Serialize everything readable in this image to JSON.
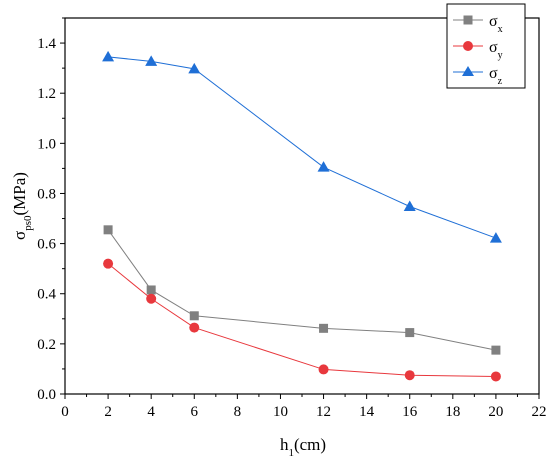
{
  "chart_data": {
    "type": "line",
    "xlabel": {
      "base": "h",
      "sub": "1",
      "rest": "(cm)"
    },
    "ylabel": {
      "base": "σ",
      "sub": "ps0",
      "rest": "(MPa)"
    },
    "xlim": [
      0,
      22
    ],
    "ylim": [
      0,
      1.5
    ],
    "x_ticks": [
      0,
      2,
      4,
      6,
      8,
      10,
      12,
      14,
      16,
      18,
      20,
      22
    ],
    "y_ticks": [
      0.0,
      0.2,
      0.4,
      0.6,
      0.8,
      1.0,
      1.2,
      1.4
    ],
    "y_tick_labels": [
      "0.0",
      "0.2",
      "0.4",
      "0.6",
      "0.8",
      "1.0",
      "1.2",
      "1.4"
    ],
    "x": [
      2,
      4,
      6,
      12,
      16,
      20
    ],
    "grid": false,
    "legend_position": "top-right",
    "series": [
      {
        "name": "σ",
        "sub": "x",
        "marker": "square",
        "color": "#808080",
        "values": [
          0.655,
          0.415,
          0.312,
          0.262,
          0.245,
          0.175
        ]
      },
      {
        "name": "σ",
        "sub": "y",
        "marker": "circle",
        "color": "#e8383d",
        "values": [
          0.52,
          0.38,
          0.265,
          0.098,
          0.075,
          0.07
        ]
      },
      {
        "name": "σ",
        "sub": "z",
        "marker": "triangle",
        "color": "#1f6fd6",
        "values": [
          1.345,
          1.327,
          1.297,
          0.905,
          0.748,
          0.622
        ]
      }
    ]
  }
}
